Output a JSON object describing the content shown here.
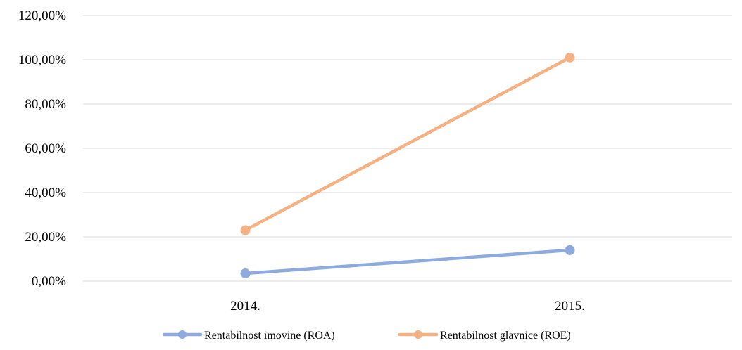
{
  "chart_data": {
    "type": "line",
    "title": "",
    "xlabel": "",
    "ylabel": "",
    "categories": [
      "2014.",
      "2015."
    ],
    "ylim": [
      0,
      120
    ],
    "y_ticks": [
      0,
      20,
      40,
      60,
      80,
      100,
      120
    ],
    "y_tick_labels": [
      "0,00%",
      "20,00%",
      "40,00%",
      "60,00%",
      "80,00%",
      "100,00%",
      "120,00%"
    ],
    "grid": true,
    "legend_position": "bottom",
    "series": [
      {
        "name": "Rentabilnost imovine (ROA)",
        "color": "#8faadc",
        "values": [
          3.5,
          14.0
        ]
      },
      {
        "name": "Rentabilnost glavnice (ROE)",
        "color": "#f4b183",
        "values": [
          23.0,
          101.0
        ]
      }
    ]
  }
}
